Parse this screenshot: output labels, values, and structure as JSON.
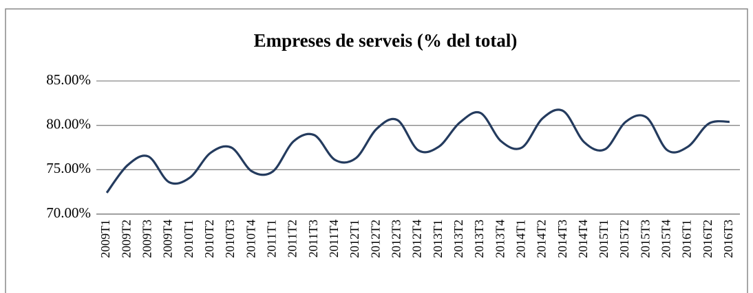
{
  "chart_data": {
    "type": "line",
    "title": "Empreses de serveis (% del total)",
    "categories": [
      "2009T1",
      "2009T2",
      "2009T3",
      "2009T4",
      "2010T1",
      "2010T2",
      "2010T3",
      "2010T4",
      "2011T1",
      "2011T2",
      "2011T3",
      "2011T4",
      "2012T1",
      "2012T2",
      "2012T3",
      "2012T4",
      "2013T1",
      "2013T2",
      "2013T3",
      "2013T4",
      "2014T1",
      "2014T2",
      "2014T3",
      "2014T4",
      "2015T1",
      "2015T2",
      "2015T3",
      "2015T4",
      "2016T1",
      "2016T2",
      "2016T3"
    ],
    "series": [
      {
        "name": "Empreses de serveis",
        "color": "#243b5e",
        "values": [
          72.4,
          75.5,
          76.5,
          73.6,
          74.1,
          76.9,
          77.5,
          74.8,
          74.8,
          78.2,
          78.9,
          76.1,
          76.3,
          79.6,
          80.6,
          77.2,
          77.6,
          80.3,
          81.4,
          78.2,
          77.5,
          80.8,
          81.6,
          78.1,
          77.3,
          80.4,
          80.9,
          77.2,
          77.6,
          80.2,
          80.4
        ]
      }
    ],
    "ylim": [
      70,
      85
    ],
    "yticks": [
      {
        "value": 70,
        "label": "70.00%"
      },
      {
        "value": 75,
        "label": "75.00%"
      },
      {
        "value": 80,
        "label": "80.00%"
      },
      {
        "value": 85,
        "label": "85.00%"
      }
    ],
    "grid": true
  }
}
